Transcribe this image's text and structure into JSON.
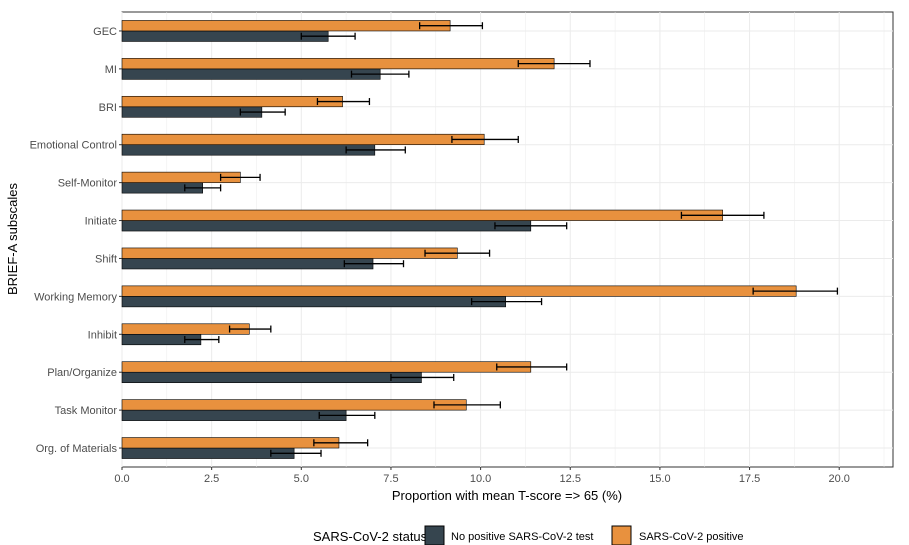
{
  "chart_data": {
    "type": "bar",
    "orientation": "horizontal",
    "xlabel": "Proportion with mean T-score => 65 (%)",
    "ylabel": "BRIEF-A subscales",
    "xlim": [
      0,
      21.5
    ],
    "x_ticks": [
      "0.0",
      "2.5",
      "5.0",
      "7.5",
      "10.0",
      "12.5",
      "15.0",
      "17.5",
      "20.0"
    ],
    "grid": true,
    "legend_position": "bottom",
    "legend_title": "SARS-CoV-2 status:",
    "categories": [
      "GEC",
      "MI",
      "BRI",
      "Emotional Control",
      "Self-Monitor",
      "Initiate",
      "Shift",
      "Working Memory",
      "Inhibit",
      "Plan/Organize",
      "Task Monitor",
      "Org. of Materials"
    ],
    "series": [
      {
        "name": "No positive SARS-CoV-2 test",
        "color": "#36454f",
        "values": [
          5.75,
          7.2,
          3.9,
          7.05,
          2.25,
          11.4,
          7.0,
          10.7,
          2.2,
          8.35,
          6.25,
          4.8
        ],
        "err_low": [
          5.0,
          6.4,
          3.3,
          6.25,
          1.75,
          10.4,
          6.2,
          9.75,
          1.75,
          7.5,
          5.5,
          4.15
        ],
        "err_high": [
          6.5,
          8.0,
          4.55,
          7.9,
          2.75,
          12.4,
          7.85,
          11.7,
          2.7,
          9.25,
          7.05,
          5.55
        ]
      },
      {
        "name": "SARS-CoV-2 positive",
        "color": "#e8913e",
        "values": [
          9.15,
          12.05,
          6.15,
          10.1,
          3.3,
          16.75,
          9.35,
          18.8,
          3.55,
          11.4,
          9.6,
          6.05
        ],
        "err_low": [
          8.3,
          11.05,
          5.45,
          9.2,
          2.75,
          15.6,
          8.45,
          17.6,
          3.0,
          10.45,
          8.7,
          5.35
        ],
        "err_high": [
          10.05,
          13.05,
          6.9,
          11.05,
          3.85,
          17.9,
          10.25,
          19.95,
          4.15,
          12.4,
          10.55,
          6.85
        ]
      }
    ]
  }
}
